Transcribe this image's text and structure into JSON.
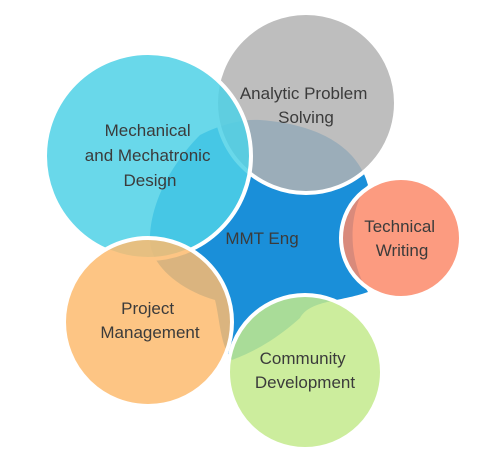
{
  "diagram": {
    "center": {
      "label": "MMT Eng",
      "color": "#1a8fd9"
    },
    "nodes": [
      {
        "id": "analytic",
        "lines": [
          "Analytic Problem",
          "Solving"
        ],
        "color": "#b3b3b3",
        "border": "#ffffff"
      },
      {
        "id": "mechanical",
        "lines": [
          "Mechanical",
          "and Mechatronic",
          "Design"
        ],
        "color": "#4fd1e6",
        "border": "#ffffff"
      },
      {
        "id": "technical",
        "lines": [
          "Technical",
          "Writing"
        ],
        "color": "#fb8a6a",
        "border": "#ffffff"
      },
      {
        "id": "project",
        "lines": [
          "Project",
          "Management"
        ],
        "color": "#fdbb6f",
        "border": "#ffffff"
      },
      {
        "id": "community",
        "lines": [
          "Community",
          "Development"
        ],
        "color": "#c3ea8c",
        "border": "#ffffff"
      }
    ]
  }
}
